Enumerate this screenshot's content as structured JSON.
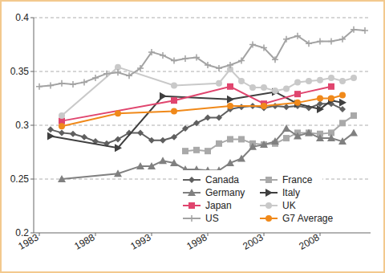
{
  "chart_data": {
    "type": "line",
    "xlim": [
      1982.5,
      2012.5
    ],
    "xticks": [
      1983,
      1988,
      1993,
      1998,
      2003,
      2008
    ],
    "ylim": [
      0.2,
      0.4
    ],
    "yticks": [
      0.2,
      0.25,
      0.3,
      0.35,
      0.4
    ],
    "grid": true,
    "legend": "lower right",
    "series": [
      {
        "name": "Canada",
        "color": "#5f5f5f",
        "marker": "diamond",
        "x": [
          1984,
          1985,
          1986,
          1987,
          1988,
          1989,
          1990,
          1991,
          1992,
          1993,
          1994,
          1995,
          1996,
          1997,
          1998,
          1999,
          2000,
          2001,
          2002,
          2003,
          2004,
          2005,
          2006,
          2007,
          2008,
          2009,
          2010
        ],
        "values": [
          0.296,
          0.293,
          0.292,
          0.289,
          0.285,
          0.283,
          0.287,
          0.293,
          0.293,
          0.286,
          0.286,
          0.289,
          0.297,
          0.302,
          0.307,
          0.307,
          0.315,
          0.317,
          0.318,
          0.316,
          0.318,
          0.317,
          0.318,
          0.316,
          0.32,
          0.32,
          0.315
        ]
      },
      {
        "name": "France",
        "color": "#a9a9a9",
        "marker": "square",
        "x": [
          1996,
          1997,
          1998,
          1999,
          2000,
          2001,
          2002,
          2003,
          2004,
          2005,
          2006,
          2007,
          2008,
          2009,
          2010,
          2011
        ],
        "values": [
          0.276,
          0.277,
          0.276,
          0.283,
          0.287,
          0.287,
          0.283,
          0.282,
          0.283,
          0.288,
          0.293,
          0.293,
          0.292,
          0.293,
          0.302,
          0.309
        ]
      },
      {
        "name": "Germany",
        "color": "#808080",
        "marker": "triangle",
        "x": [
          1985,
          1990,
          1992,
          1993,
          1994,
          1995,
          1996,
          1997,
          1998,
          1999,
          2000,
          2001,
          2002,
          2003,
          2004,
          2005,
          2006,
          2007,
          2008,
          2009,
          2010,
          2011
        ],
        "values": [
          0.25,
          0.255,
          0.262,
          0.262,
          0.267,
          0.265,
          0.259,
          0.259,
          0.258,
          0.258,
          0.265,
          0.269,
          0.28,
          0.282,
          0.285,
          0.297,
          0.29,
          0.293,
          0.288,
          0.288,
          0.285,
          0.293
        ]
      },
      {
        "name": "Italy",
        "color": "#3f3f3f",
        "marker": "triangle-right",
        "x": [
          1984,
          1990,
          1994,
          2000,
          2004,
          2006,
          2008,
          2009,
          2010
        ],
        "values": [
          0.29,
          0.279,
          0.327,
          0.324,
          0.331,
          0.32,
          0.315,
          0.323,
          0.321
        ]
      },
      {
        "name": "Japan",
        "color": "#e0456e",
        "marker": "square",
        "x": [
          1985,
          1995,
          2000,
          2003,
          2006,
          2009
        ],
        "values": [
          0.304,
          0.323,
          0.336,
          0.32,
          0.329,
          0.336
        ]
      },
      {
        "name": "UK",
        "color": "#c9c9c9",
        "marker": "circle",
        "x": [
          1985,
          1990,
          1995,
          1999,
          2000,
          2001,
          2002,
          2003,
          2004,
          2005,
          2006,
          2007,
          2008,
          2009,
          2010,
          2011
        ],
        "values": [
          0.309,
          0.354,
          0.337,
          0.339,
          0.352,
          0.341,
          0.335,
          0.335,
          0.332,
          0.334,
          0.34,
          0.341,
          0.342,
          0.344,
          0.341,
          0.344
        ]
      },
      {
        "name": "US",
        "color": "#a3a3a3",
        "marker": "plus",
        "x": [
          1983,
          1984,
          1985,
          1986,
          1987,
          1988,
          1989,
          1990,
          1991,
          1992,
          1993,
          1994,
          1995,
          1996,
          1997,
          1998,
          1999,
          2000,
          2001,
          2002,
          2003,
          2004,
          2005,
          2006,
          2007,
          2008,
          2009,
          2010,
          2011,
          2012
        ],
        "values": [
          0.336,
          0.337,
          0.339,
          0.338,
          0.34,
          0.344,
          0.348,
          0.349,
          0.346,
          0.353,
          0.368,
          0.365,
          0.36,
          0.362,
          0.363,
          0.356,
          0.353,
          0.356,
          0.36,
          0.375,
          0.372,
          0.361,
          0.38,
          0.383,
          0.376,
          0.378,
          0.378,
          0.38,
          0.389,
          0.388
        ]
      },
      {
        "name": "G7 Average",
        "color": "#f0891a",
        "marker": "circle",
        "x": [
          1985,
          1990,
          1995,
          2000,
          2003,
          2006,
          2008,
          2009,
          2010
        ],
        "values": [
          0.299,
          0.311,
          0.313,
          0.318,
          0.318,
          0.321,
          0.325,
          0.325,
          0.328
        ]
      }
    ]
  }
}
